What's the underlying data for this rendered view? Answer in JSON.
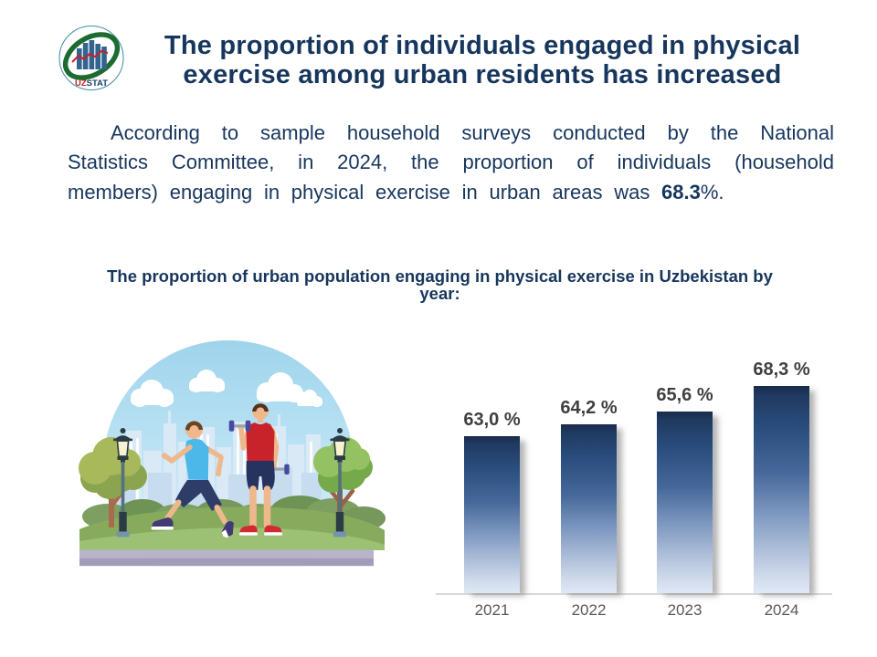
{
  "logo": {
    "uz": "UZ",
    "stat": "STAT",
    "colors": {
      "uz": "#c8202a",
      "stat": "#1b3f66",
      "swoosh": "#1c6b31",
      "bars": "#31648e",
      "line": "#c8202a",
      "ring": "#3e8d9e"
    }
  },
  "title": {
    "lines": [
      "The proportion of individuals engaged in physical",
      "exercise among urban residents has increased"
    ],
    "color": "#17365d"
  },
  "paragraph": {
    "line1": "According to sample household surveys conducted by the National",
    "line2": "Statistics Committee, in 2024, the proportion of individuals (household",
    "line3_pre": "members) engaging in physical exercise in urban areas was ",
    "line3_bold": "68.3",
    "line3_post": "%."
  },
  "subtitle": {
    "lines": [
      "The proportion of urban population engaging in physical exercise in Uzbekistan by",
      "year:"
    ]
  },
  "illustration": {
    "description": "Two men exercising in a city park: one jogging in a blue tank top, one lifting dumbbells in a red tank top, with trees, street lamps, bushes, clouds and a skyline inside a light-blue dome"
  },
  "chart_data": {
    "type": "bar",
    "title": "",
    "xlabel": "",
    "ylabel": "",
    "categories": [
      "2021",
      "2022",
      "2023",
      "2024"
    ],
    "values": [
      63.0,
      64.2,
      65.6,
      68.3
    ],
    "value_labels": [
      "63,0 %",
      "64,2 %",
      "65,6 %",
      "68,3 %"
    ],
    "unit": "%",
    "axis_baseline_value": 46.4,
    "grid": "off",
    "legend": "none",
    "bar_gradient_top": "#1f3864",
    "bar_gradient_bottom": "#dfe8f4",
    "label_color": "#3f3f3f",
    "year_color": "#595959"
  }
}
